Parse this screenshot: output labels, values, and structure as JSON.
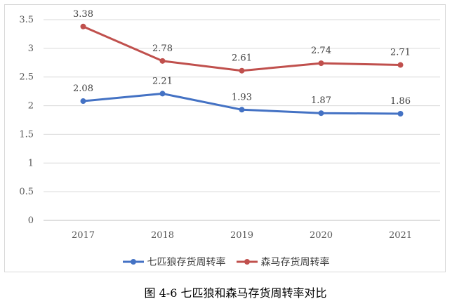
{
  "caption": "图 4-6 七匹狼和森马存货周转率对比",
  "chart_data": {
    "type": "line",
    "title": "",
    "xlabel": "",
    "ylabel": "",
    "categories": [
      "2017",
      "2018",
      "2019",
      "2020",
      "2021"
    ],
    "y_ticks": [
      "0",
      "0.5",
      "1",
      "1.5",
      "2",
      "2.5",
      "3",
      "3.5"
    ],
    "ylim": [
      0,
      3.5
    ],
    "grid": "horizontal",
    "legend_position": "bottom",
    "series": [
      {
        "name": "七匹狼存货周转率",
        "color": "#4472c4",
        "values": [
          2.08,
          2.21,
          1.93,
          1.87,
          1.86
        ],
        "labels": [
          "2.08",
          "2.21",
          "1.93",
          "1.87",
          "1.86"
        ]
      },
      {
        "name": "森马存货周转率",
        "color": "#c0504d",
        "values": [
          3.38,
          2.78,
          2.61,
          2.74,
          2.71
        ],
        "labels": [
          "3.38",
          "2.78",
          "2.61",
          "2.74",
          "2.71"
        ]
      }
    ]
  }
}
